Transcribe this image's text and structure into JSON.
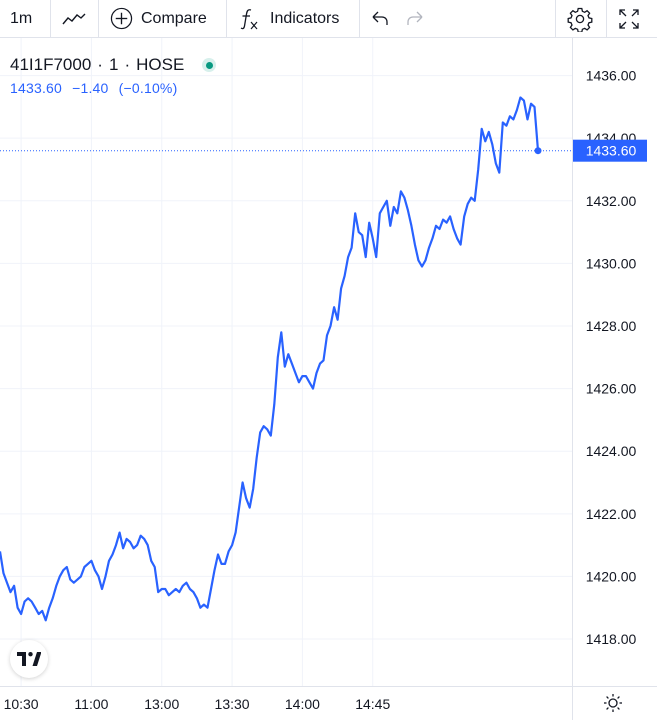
{
  "toolbar": {
    "interval": "1m",
    "chart_type_icon": "line-chart-icon",
    "compare_label": "Compare",
    "indicators_label": "Indicators",
    "undo_icon": "undo-icon",
    "redo_icon": "redo-icon",
    "settings_icon": "gear-icon",
    "fullscreen_icon": "fullscreen-icon"
  },
  "legend": {
    "symbol": "41I1F7000",
    "interval": "1",
    "exchange": "HOSE",
    "separator": "·",
    "price": "1433.60",
    "change": "−1.40",
    "change_pct": "(−0.10%)",
    "status_color": "#089981"
  },
  "colors": {
    "line": "#2962ff",
    "grid": "#f0f3fa",
    "axis_text": "#131722",
    "price_label_bg": "#2962ff"
  },
  "chart_data": {
    "type": "line",
    "title": "",
    "xlabel": "",
    "ylabel": "",
    "ylim": [
      1416.5,
      1437.2
    ],
    "y_ticks": [
      1418,
      1420,
      1422,
      1424,
      1426,
      1428,
      1430,
      1432,
      1434,
      1436
    ],
    "y_tick_labels": [
      "1418.00",
      "1420.00",
      "1422.00",
      "1424.00",
      "1426.00",
      "1428.00",
      "1430.00",
      "1432.00",
      "1434.00",
      "1436.00"
    ],
    "x_ticks": [
      {
        "index": 6,
        "label": "10:30"
      },
      {
        "index": 26,
        "label": "11:00"
      },
      {
        "index": 46,
        "label": "13:00"
      },
      {
        "index": 66,
        "label": "13:30"
      },
      {
        "index": 86,
        "label": "14:00"
      },
      {
        "index": 106,
        "label": "14:45"
      }
    ],
    "last_price_label": "1433.60",
    "grid": true,
    "series": [
      {
        "values": [
          1420.8,
          1420.1,
          1419.8,
          1419.5,
          1419.7,
          1419.0,
          1418.8,
          1419.2,
          1419.3,
          1419.2,
          1419.0,
          1418.8,
          1418.9,
          1418.6,
          1419.0,
          1419.3,
          1419.7,
          1420.0,
          1420.2,
          1420.3,
          1419.9,
          1419.8,
          1419.9,
          1420.0,
          1420.3,
          1420.4,
          1420.5,
          1420.2,
          1420.0,
          1419.6,
          1420.0,
          1420.5,
          1420.7,
          1421.0,
          1421.4,
          1420.9,
          1421.2,
          1421.1,
          1420.9,
          1421.0,
          1421.3,
          1421.2,
          1421.0,
          1420.5,
          1420.3,
          1419.5,
          1419.6,
          1419.6,
          1419.4,
          1419.5,
          1419.6,
          1419.5,
          1419.7,
          1419.8,
          1419.6,
          1419.5,
          1419.3,
          1419.0,
          1419.1,
          1419.0,
          1419.6,
          1420.2,
          1420.7,
          1420.4,
          1420.4,
          1420.8,
          1421.0,
          1421.4,
          1422.2,
          1423.0,
          1422.5,
          1422.2,
          1422.8,
          1423.8,
          1424.6,
          1424.8,
          1424.7,
          1424.5,
          1425.5,
          1427.0,
          1427.8,
          1426.7,
          1427.1,
          1426.8,
          1426.5,
          1426.2,
          1426.4,
          1426.4,
          1426.2,
          1426.0,
          1426.5,
          1426.8,
          1426.9,
          1427.7,
          1428.0,
          1428.6,
          1428.2,
          1429.2,
          1429.6,
          1430.2,
          1430.5,
          1431.6,
          1431.0,
          1430.9,
          1430.2,
          1431.3,
          1430.8,
          1430.2,
          1431.6,
          1431.8,
          1432.0,
          1431.2,
          1431.8,
          1431.6,
          1432.3,
          1432.1,
          1431.7,
          1431.2,
          1430.6,
          1430.1,
          1429.9,
          1430.1,
          1430.5,
          1430.8,
          1431.2,
          1431.1,
          1431.4,
          1431.3,
          1431.5,
          1431.1,
          1430.8,
          1430.6,
          1431.5,
          1431.9,
          1432.1,
          1432.0,
          1433.0,
          1434.3,
          1433.9,
          1434.2,
          1433.8,
          1433.2,
          1432.9,
          1434.5,
          1434.4,
          1434.7,
          1434.6,
          1434.9,
          1435.3,
          1435.2,
          1434.6,
          1435.1,
          1435.0,
          1433.6
        ],
        "color": "#2962ff"
      }
    ]
  },
  "bottom": {
    "logo_icon": "tradingview-logo-icon",
    "settings_icon": "sun-settings-icon"
  }
}
